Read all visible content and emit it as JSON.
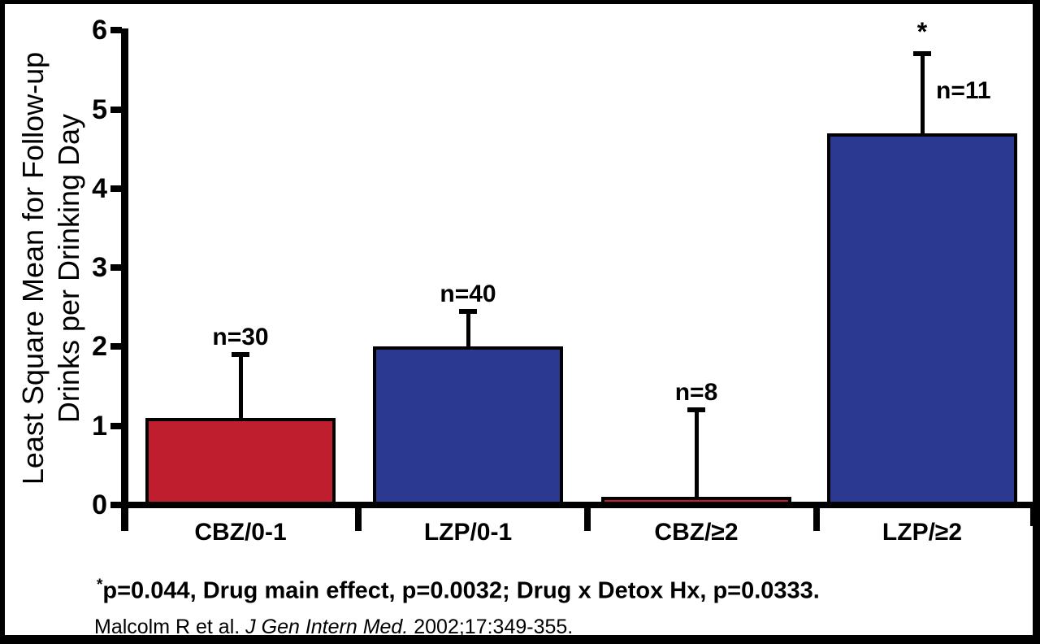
{
  "chart_data": {
    "type": "bar",
    "title": "",
    "ylabel_lines": [
      "Least Square Mean for Follow-up",
      "Drinks per Drinking Day"
    ],
    "categories": [
      "CBZ/0-1",
      "LZP/0-1",
      "CBZ/≥2",
      "LZP/≥2"
    ],
    "values": [
      1.1,
      2.0,
      0.1,
      4.7
    ],
    "error_bar_tops": [
      1.9,
      2.45,
      1.2,
      5.7
    ],
    "n_labels": [
      "n=30",
      "n=40",
      "n=8",
      "n=11"
    ],
    "significance_markers": [
      "",
      "",
      "",
      "*"
    ],
    "bar_colors": [
      "#be1e2d",
      "#2b3990",
      "#be1e2d",
      "#2b3990"
    ],
    "axis_color": "#000000",
    "ylim": [
      0,
      6
    ],
    "yticks": [
      "0",
      "1",
      "2",
      "3",
      "4",
      "5",
      "6"
    ],
    "grid": false,
    "legend": "none"
  },
  "footnote": {
    "marker": "*",
    "text": "p=0.044, Drug main effect, p=0.0032; Drug x Detox Hx, p=0.0333."
  },
  "citation": {
    "authors": "Malcolm R et al. ",
    "journal_italic": "J Gen Intern Med.",
    "rest": " 2002;17:349-355."
  }
}
